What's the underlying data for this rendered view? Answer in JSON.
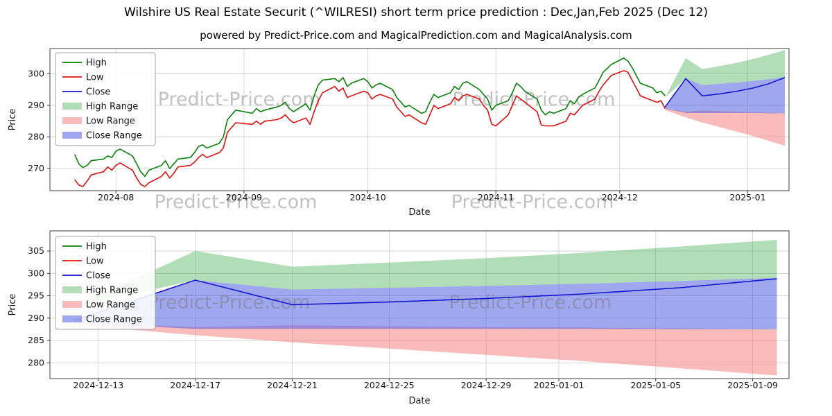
{
  "page": {
    "title": "Wilshire US Real Estate Securit (^WILRESI) short term price prediction : Dec,Jan,Feb 2025 (Dec 12)",
    "subtitle": "powered by Predict-Price.com and MagicalPrediction.com and MagicalAnalysis.com",
    "watermark": "Predict-Price.com"
  },
  "colors": {
    "high": "#0a800a",
    "low": "#dd1111",
    "close": "#1414cc",
    "high_range": "rgba(100,190,110,0.5)",
    "low_range": "rgba(245,120,120,0.5)",
    "close_range": "rgba(80,95,225,0.55)",
    "grid": "#cccccc",
    "axis": "#3c3c3c",
    "text": "#141414",
    "watermark": "rgba(120,120,120,0.45)"
  },
  "chart_data": [
    {
      "type": "line",
      "xlabel": "Date",
      "ylabel": "Price",
      "xlim": [
        "2024-07-16",
        "2025-01-11"
      ],
      "ylim": [
        263,
        308
      ],
      "yticks": [
        270,
        280,
        290,
        300
      ],
      "xticks": [
        {
          "x": "2024-08-01",
          "label": "2024-08"
        },
        {
          "x": "2024-09-01",
          "label": "2024-09"
        },
        {
          "x": "2024-10-01",
          "label": "2024-10"
        },
        {
          "x": "2024-11-01",
          "label": "2024-11"
        },
        {
          "x": "2024-12-01",
          "label": "2024-12"
        },
        {
          "x": "2025-01-01",
          "label": "2025-01"
        }
      ],
      "x_hist": [
        "2024-07-22",
        "2024-07-23",
        "2024-07-24",
        "2024-07-25",
        "2024-07-26",
        "2024-07-29",
        "2024-07-30",
        "2024-07-31",
        "2024-08-01",
        "2024-08-02",
        "2024-08-05",
        "2024-08-06",
        "2024-08-07",
        "2024-08-08",
        "2024-08-09",
        "2024-08-12",
        "2024-08-13",
        "2024-08-14",
        "2024-08-15",
        "2024-08-16",
        "2024-08-19",
        "2024-08-20",
        "2024-08-21",
        "2024-08-22",
        "2024-08-23",
        "2024-08-26",
        "2024-08-27",
        "2024-08-28",
        "2024-08-29",
        "2024-08-30",
        "2024-09-03",
        "2024-09-04",
        "2024-09-05",
        "2024-09-06",
        "2024-09-09",
        "2024-09-10",
        "2024-09-11",
        "2024-09-12",
        "2024-09-13",
        "2024-09-16",
        "2024-09-17",
        "2024-09-18",
        "2024-09-19",
        "2024-09-20",
        "2024-09-23",
        "2024-09-24",
        "2024-09-25",
        "2024-09-26",
        "2024-09-27",
        "2024-09-30",
        "2024-10-01",
        "2024-10-02",
        "2024-10-03",
        "2024-10-04",
        "2024-10-07",
        "2024-10-08",
        "2024-10-09",
        "2024-10-10",
        "2024-10-11",
        "2024-10-14",
        "2024-10-15",
        "2024-10-16",
        "2024-10-17",
        "2024-10-18",
        "2024-10-21",
        "2024-10-22",
        "2024-10-23",
        "2024-10-24",
        "2024-10-25",
        "2024-10-28",
        "2024-10-29",
        "2024-10-30",
        "2024-10-31",
        "2024-11-01",
        "2024-11-04",
        "2024-11-05",
        "2024-11-06",
        "2024-11-07",
        "2024-11-08",
        "2024-11-11",
        "2024-11-12",
        "2024-11-13",
        "2024-11-14",
        "2024-11-15",
        "2024-11-18",
        "2024-11-19",
        "2024-11-20",
        "2024-11-21",
        "2024-11-22",
        "2024-11-25",
        "2024-11-26",
        "2024-11-27",
        "2024-11-29",
        "2024-12-02",
        "2024-12-03",
        "2024-12-04",
        "2024-12-05",
        "2024-12-06",
        "2024-12-09",
        "2024-12-10",
        "2024-12-11",
        "2024-12-12"
      ],
      "x_pred": [
        "2024-12-12",
        "2024-12-17",
        "2024-12-21",
        "2024-12-25",
        "2024-12-29",
        "2025-01-02",
        "2025-01-06",
        "2025-01-10"
      ],
      "series": [
        {
          "name": "High",
          "color": "high",
          "x": "hist",
          "y": [
            274.5,
            271.5,
            270.3,
            271.0,
            272.5,
            273.0,
            274.0,
            273.5,
            275.5,
            276.2,
            274.0,
            271.5,
            269.0,
            267.5,
            269.5,
            271.0,
            272.5,
            270.0,
            271.5,
            273.0,
            273.5,
            275.0,
            277.0,
            277.5,
            276.5,
            278.0,
            280.0,
            285.5,
            287.0,
            288.5,
            287.5,
            289.0,
            288.0,
            288.5,
            289.5,
            290.0,
            291.0,
            289.0,
            288.0,
            290.5,
            288.5,
            293.0,
            296.5,
            298.0,
            298.5,
            297.5,
            298.8,
            296.0,
            297.0,
            298.5,
            297.5,
            295.5,
            296.5,
            297.0,
            295.0,
            292.5,
            291.0,
            289.5,
            290.0,
            287.5,
            288.0,
            291.0,
            293.5,
            292.5,
            294.0,
            296.0,
            295.0,
            297.0,
            297.5,
            295.0,
            293.5,
            292.0,
            288.5,
            290.0,
            291.5,
            294.0,
            297.0,
            296.0,
            294.5,
            292.0,
            288.5,
            287.0,
            288.0,
            287.5,
            289.0,
            291.5,
            290.5,
            292.5,
            293.5,
            295.5,
            298.0,
            300.5,
            303.0,
            305.0,
            304.0,
            302.0,
            299.5,
            297.0,
            295.5,
            294.0,
            294.5,
            293.0
          ]
        },
        {
          "name": "Low",
          "color": "low",
          "x": "hist",
          "y": [
            266.5,
            264.8,
            264.3,
            266.0,
            268.0,
            269.0,
            270.5,
            269.5,
            271.0,
            271.8,
            269.5,
            267.0,
            265.0,
            264.3,
            265.5,
            267.5,
            269.0,
            267.0,
            268.5,
            270.5,
            271.0,
            272.0,
            273.5,
            274.5,
            273.5,
            275.0,
            276.5,
            281.5,
            283.0,
            284.5,
            284.0,
            285.0,
            284.0,
            285.0,
            285.5,
            286.0,
            287.0,
            285.5,
            284.5,
            286.0,
            284.0,
            288.0,
            291.5,
            294.0,
            296.0,
            294.5,
            295.5,
            292.5,
            293.0,
            294.5,
            294.0,
            292.0,
            293.0,
            293.5,
            292.0,
            289.5,
            288.0,
            286.5,
            287.0,
            284.5,
            284.0,
            287.0,
            290.0,
            289.0,
            290.5,
            292.5,
            291.5,
            293.0,
            293.5,
            292.0,
            290.0,
            288.5,
            284.0,
            283.5,
            287.0,
            290.0,
            293.0,
            292.0,
            291.0,
            288.0,
            283.8,
            283.5,
            283.5,
            283.5,
            285.0,
            287.5,
            287.0,
            288.5,
            290.0,
            292.0,
            294.5,
            296.5,
            299.5,
            301.0,
            300.5,
            298.0,
            295.5,
            293.0,
            291.5,
            291.0,
            291.5,
            289.0
          ]
        },
        {
          "name": "Close",
          "color": "close",
          "x": "pred",
          "y": [
            289.5,
            298.5,
            293.0,
            293.6,
            294.4,
            295.4,
            296.8,
            298.8
          ]
        }
      ],
      "bands": [
        {
          "name": "High Range",
          "color": "high_range",
          "x": "pred",
          "upper": [
            292.5,
            305.0,
            301.5,
            302.4,
            303.4,
            304.6,
            306.0,
            307.5
          ],
          "lower": [
            292.5,
            298.5,
            296.4,
            296.8,
            297.2,
            297.7,
            298.3,
            299.0
          ]
        },
        {
          "name": "Low Range",
          "color": "low_range",
          "x": "pred",
          "upper": [
            289.0,
            288.0,
            288.4,
            288.2,
            288.0,
            287.9,
            287.7,
            287.5
          ],
          "lower": [
            288.5,
            286.2,
            284.6,
            283.2,
            281.8,
            280.4,
            278.8,
            277.2
          ]
        },
        {
          "name": "Close Range",
          "color": "close_range",
          "x": "pred",
          "upper": [
            289.5,
            298.5,
            296.4,
            296.8,
            297.2,
            297.7,
            298.3,
            299.0
          ],
          "lower": [
            289.0,
            287.6,
            287.6,
            287.6,
            287.6,
            287.6,
            287.5,
            287.5
          ]
        }
      ],
      "legend": [
        {
          "label": "High",
          "swatch": "line",
          "color": "high"
        },
        {
          "label": "Low",
          "swatch": "line",
          "color": "low"
        },
        {
          "label": "Close",
          "swatch": "line",
          "color": "close"
        },
        {
          "label": "High Range",
          "swatch": "patch",
          "color": "high_range"
        },
        {
          "label": "Low Range",
          "swatch": "patch",
          "color": "low_range"
        },
        {
          "label": "Close Range",
          "swatch": "patch",
          "color": "close_range"
        }
      ]
    },
    {
      "type": "line",
      "xlabel": "Date",
      "ylabel": "Price",
      "xlim": [
        "2024-12-11",
        "2025-01-10T12:00:00"
      ],
      "ylim": [
        276.5,
        309.5
      ],
      "yticks": [
        280,
        285,
        290,
        295,
        300,
        305
      ],
      "xticks": [
        {
          "x": "2024-12-13",
          "label": "2024-12-13"
        },
        {
          "x": "2024-12-17",
          "label": "2024-12-17"
        },
        {
          "x": "2024-12-21",
          "label": "2024-12-21"
        },
        {
          "x": "2024-12-25",
          "label": "2024-12-25"
        },
        {
          "x": "2024-12-29",
          "label": "2024-12-29"
        },
        {
          "x": "2025-01-01",
          "label": "2025-01-01"
        },
        {
          "x": "2025-01-05",
          "label": "2025-01-05"
        },
        {
          "x": "2025-01-09",
          "label": "2025-01-09"
        }
      ],
      "x_pred": [
        "2024-12-12",
        "2024-12-17",
        "2024-12-21",
        "2024-12-25",
        "2024-12-29",
        "2025-01-02",
        "2025-01-06",
        "2025-01-10"
      ],
      "series": [
        {
          "name": "Close",
          "color": "close",
          "x": "pred",
          "y": [
            289.5,
            298.5,
            293.0,
            293.6,
            294.4,
            295.4,
            296.8,
            298.8
          ]
        }
      ],
      "bands": [
        {
          "name": "High Range",
          "color": "high_range",
          "x": "pred",
          "upper": [
            292.5,
            305.0,
            301.5,
            302.4,
            303.4,
            304.6,
            306.0,
            307.5
          ],
          "lower": [
            292.5,
            298.5,
            296.4,
            296.8,
            297.2,
            297.7,
            298.3,
            299.0
          ]
        },
        {
          "name": "Low Range",
          "color": "low_range",
          "x": "pred",
          "upper": [
            289.0,
            288.0,
            288.4,
            288.2,
            288.0,
            287.9,
            287.7,
            287.5
          ],
          "lower": [
            288.5,
            286.2,
            284.6,
            283.2,
            281.8,
            280.4,
            278.8,
            277.2
          ]
        },
        {
          "name": "Close Range",
          "color": "close_range",
          "x": "pred",
          "upper": [
            289.5,
            298.5,
            296.4,
            296.8,
            297.2,
            297.7,
            298.3,
            299.0
          ],
          "lower": [
            289.0,
            287.6,
            287.6,
            287.6,
            287.6,
            287.6,
            287.5,
            287.5
          ]
        }
      ],
      "legend": [
        {
          "label": "High",
          "swatch": "line",
          "color": "high"
        },
        {
          "label": "Low",
          "swatch": "line",
          "color": "low"
        },
        {
          "label": "Close",
          "swatch": "line",
          "color": "close"
        },
        {
          "label": "High Range",
          "swatch": "patch",
          "color": "high_range"
        },
        {
          "label": "Low Range",
          "swatch": "patch",
          "color": "low_range"
        },
        {
          "label": "Close Range",
          "swatch": "patch",
          "color": "close_range"
        }
      ]
    }
  ]
}
